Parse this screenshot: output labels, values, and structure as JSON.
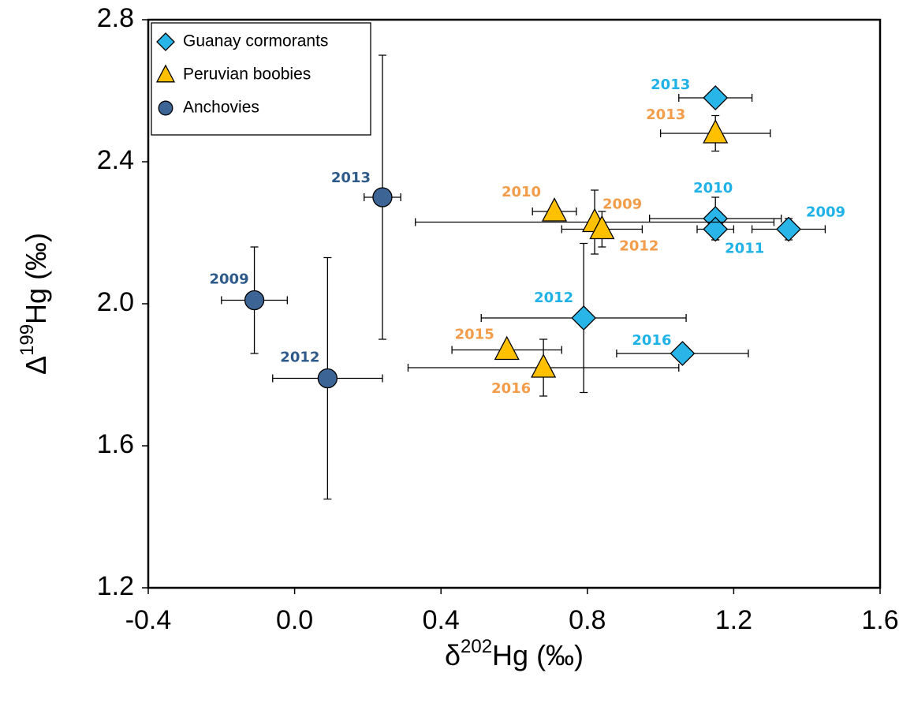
{
  "chart_data": {
    "type": "scatter",
    "x_label": {
      "prefix": "δ",
      "superscript": "202",
      "suffix": "Hg (‰)"
    },
    "y_label": {
      "prefix": "Δ",
      "superscript": "199",
      "suffix": "Hg (‰)"
    },
    "xlim": [
      -0.4,
      1.6
    ],
    "xticks": [
      -0.4,
      {
        "value": 0,
        "label": "0.0"
      },
      0.4,
      0.8,
      1.2,
      1.6
    ],
    "ylim": [
      1.2,
      2.8
    ],
    "yticks": [
      1.2,
      1.6,
      {
        "value": 2,
        "label": "2.0"
      },
      2.4,
      2.8
    ],
    "grid": false,
    "legend": "upper left",
    "series": [
      {
        "name": "Guanay cormorants",
        "marker": "diamond",
        "color": "#29b5e8",
        "label_color": "#1fb2e6",
        "labels": [
          "2009",
          "2010",
          "2011",
          "2012",
          "2013",
          "2016"
        ],
        "x": [
          1.35,
          1.15,
          1.15,
          0.79,
          1.15,
          1.06
        ],
        "values": [
          2.21,
          2.24,
          2.21,
          1.96,
          2.58,
          1.86
        ],
        "xerr": [
          0.1,
          0.18,
          0.05,
          0.28,
          0.1,
          0.18
        ],
        "yerr": [
          0.03,
          0.06,
          0.03,
          0.21,
          0,
          0
        ]
      },
      {
        "name": "Peruvian boobies",
        "marker": "triangle",
        "color": "#ffc000",
        "label_color": "#f39c4a",
        "labels": [
          "2009",
          "2010",
          "2012",
          "2013",
          "2015",
          "2016"
        ],
        "x": [
          0.82,
          0.71,
          0.84,
          1.15,
          0.58,
          0.68
        ],
        "values": [
          2.23,
          2.26,
          2.21,
          2.48,
          1.87,
          1.82
        ],
        "xerr": [
          0.49,
          0.06,
          0.11,
          0.15,
          0.15,
          0.37
        ],
        "yerr": [
          0.09,
          0,
          0.05,
          0.05,
          0,
          0.08
        ]
      },
      {
        "name": "Anchovies",
        "marker": "circle",
        "color": "#3c6596",
        "label_color": "#2e5a8a",
        "labels": [
          "2009",
          "2012",
          "2013"
        ],
        "x": [
          -0.11,
          0.09,
          0.24
        ],
        "values": [
          2.01,
          1.79,
          2.3
        ],
        "xerr": [
          0.09,
          0.15,
          0.05
        ],
        "yerr": [
          0.15,
          0.34,
          0.4
        ]
      }
    ]
  }
}
